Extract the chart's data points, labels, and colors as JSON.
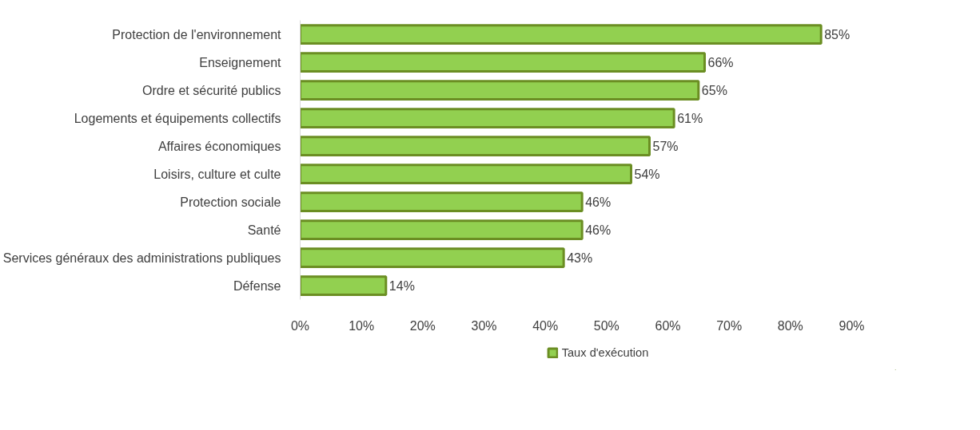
{
  "chart_data": {
    "type": "bar",
    "orientation": "horizontal",
    "categories": [
      "Protection de l'environnement",
      "Enseignement",
      "Ordre et sécurité publics",
      "Logements et équipements collectifs",
      "Affaires économiques",
      "Loisirs, culture et culte",
      "Protection sociale",
      "Santé",
      "Services généraux des administrations publiques",
      "Défense"
    ],
    "series": [
      {
        "name": "Taux d'exécution",
        "color": "#92d050",
        "values": [
          85,
          66,
          65,
          61,
          57,
          54,
          46,
          46,
          43,
          14
        ],
        "value_labels": [
          "85%",
          "66%",
          "65%",
          "61%",
          "57%",
          "54%",
          "46%",
          "46%",
          "43%",
          "14%"
        ]
      }
    ],
    "xlim": [
      0,
      90
    ],
    "xticks": [
      {
        "value": 0,
        "label": "0%"
      },
      {
        "value": 10,
        "label": "10%"
      },
      {
        "value": 20,
        "label": "20%"
      },
      {
        "value": 30,
        "label": "30%"
      },
      {
        "value": 40,
        "label": "40%"
      },
      {
        "value": 50,
        "label": "50%"
      },
      {
        "value": 60,
        "label": "60%"
      },
      {
        "value": 70,
        "label": "70%"
      },
      {
        "value": 80,
        "label": "80%"
      },
      {
        "value": 90,
        "label": "90%"
      }
    ],
    "grid": false,
    "legend": "bottom"
  }
}
